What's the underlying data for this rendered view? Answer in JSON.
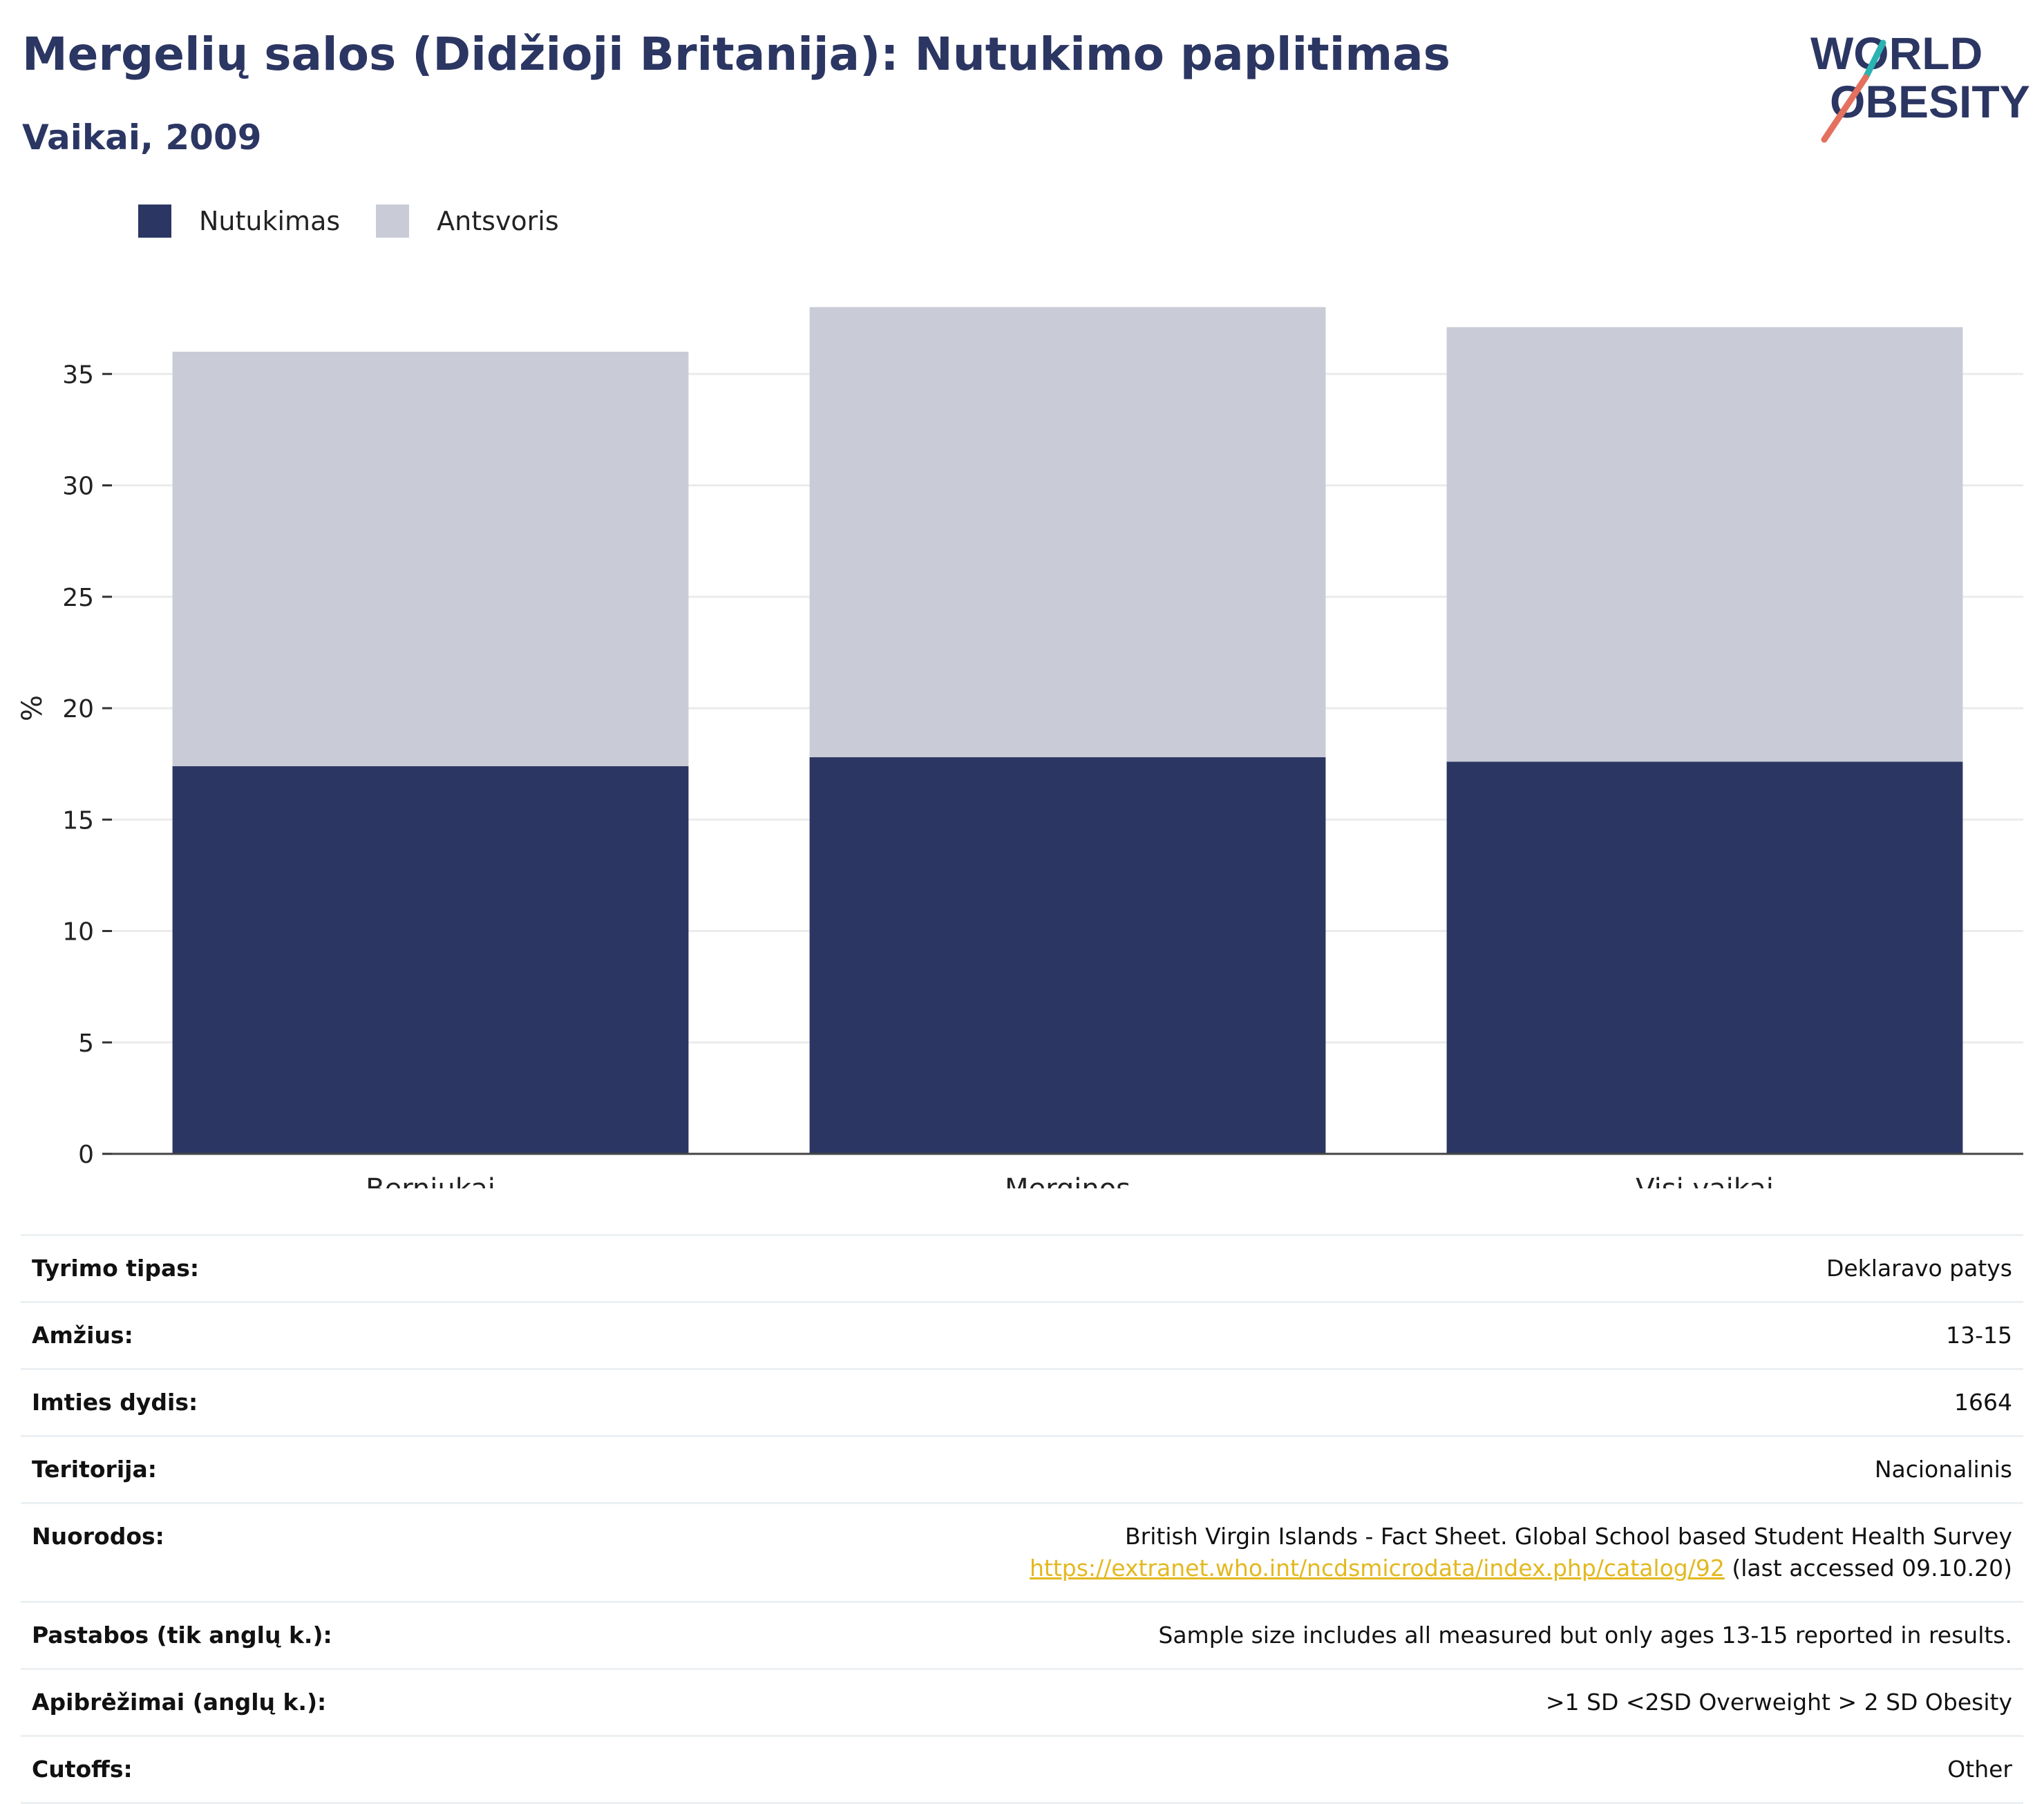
{
  "header": {
    "title": "Mergelių salos (Didžioji Britanija): Nutukimo paplitimas",
    "subtitle": "Vaikai, 2009"
  },
  "logo": {
    "line1": "WORLD",
    "line2": "OBESITY"
  },
  "colors": {
    "obesity": "#2b3663",
    "overweight": "#c9cbd6",
    "accent_teal": "#2ab3b0",
    "accent_red": "#e4705e",
    "link": "#e3b81f"
  },
  "chart_data": {
    "type": "bar",
    "stacked": true,
    "categories": [
      "Berniukai",
      "Merginos",
      "Visi vaikai"
    ],
    "series": [
      {
        "name": "Nutukimas",
        "values": [
          17.4,
          17.8,
          17.6
        ]
      },
      {
        "name": "Antsvoris",
        "values": [
          18.6,
          20.2,
          19.5
        ]
      }
    ],
    "ylabel": "%",
    "ylim": [
      0,
      40
    ],
    "yticks": [
      0,
      5,
      10,
      15,
      20,
      25,
      30,
      35
    ],
    "grid": true,
    "legend_position": "top-left"
  },
  "info": {
    "rows": [
      {
        "label": "Tyrimo tipas:",
        "value": "Deklaravo patys"
      },
      {
        "label": "Amžius:",
        "value": "13-15"
      },
      {
        "label": "Imties dydis:",
        "value": "1664"
      },
      {
        "label": "Teritorija:",
        "value": "Nacionalinis"
      }
    ],
    "references": {
      "label": "Nuorodos:",
      "line1": "British Virgin Islands - Fact Sheet. Global School based Student Health Survey",
      "link": "https://extranet.who.int/ncdsmicrodata/index.php/catalog/92",
      "suffix": " (last accessed 09.10.20)"
    },
    "rows2": [
      {
        "label": "Pastabos (tik anglų k.):",
        "value": "Sample size includes all measured but only ages 13-15 reported in results."
      },
      {
        "label": "Apibrėžimai (anglų k.):",
        "value": ">1 SD <2SD Overweight > 2 SD Obesity"
      },
      {
        "label": "Cutoffs:",
        "value": "Other"
      }
    ]
  }
}
